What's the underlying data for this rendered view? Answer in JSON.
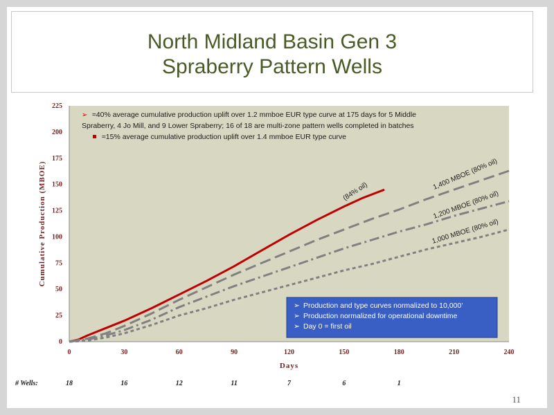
{
  "slide": {
    "title_line1": "North Midland Basin Gen 3",
    "title_line2": "Spraberry Pattern Wells",
    "page_number": "11"
  },
  "chart_data": {
    "type": "line",
    "xlabel": "Days",
    "ylabel": "Cumulative Production (MBOE)",
    "xlim": [
      0,
      240
    ],
    "ylim": [
      0,
      225
    ],
    "xticks": [
      0,
      30,
      60,
      90,
      120,
      150,
      180,
      210,
      240
    ],
    "yticks": [
      0,
      25,
      50,
      75,
      100,
      125,
      150,
      175,
      200,
      225
    ],
    "grid": false,
    "series": [
      {
        "label": "(84% oil)",
        "color": "#c00000",
        "style": "solid",
        "x": [
          0,
          5,
          10,
          20,
          30,
          45,
          60,
          75,
          90,
          105,
          120,
          135,
          150,
          160,
          172
        ],
        "y": [
          0,
          2,
          6,
          13,
          20,
          32,
          45,
          58,
          72,
          87,
          102,
          116,
          129,
          137,
          145
        ]
      },
      {
        "label": "1,400 MBOE (80% oil)",
        "color": "#808080",
        "style": "dash",
        "x": [
          0,
          10,
          20,
          30,
          45,
          60,
          75,
          90,
          105,
          120,
          135,
          150,
          165,
          180,
          195,
          210,
          225,
          240
        ],
        "y": [
          0,
          3,
          8,
          15,
          27,
          40,
          52,
          64,
          75,
          86,
          97,
          107,
          117,
          126,
          136,
          145,
          154,
          163
        ]
      },
      {
        "label": "1,200 MBOE (80% oil)",
        "color": "#808080",
        "style": "dashdot",
        "x": [
          0,
          10,
          20,
          30,
          45,
          60,
          75,
          90,
          105,
          120,
          135,
          150,
          165,
          180,
          195,
          210,
          225,
          240
        ],
        "y": [
          0,
          2,
          6,
          11,
          21,
          33,
          43,
          53,
          62,
          71,
          80,
          89,
          97,
          105,
          112,
          120,
          127,
          134
        ]
      },
      {
        "label": "1,000 MBOE (80% oil)",
        "color": "#808080",
        "style": "dot",
        "x": [
          0,
          10,
          20,
          30,
          45,
          60,
          75,
          90,
          105,
          120,
          135,
          150,
          165,
          180,
          195,
          210,
          225,
          240
        ],
        "y": [
          0,
          1,
          4,
          8,
          16,
          25,
          32,
          40,
          47,
          54,
          61,
          68,
          74,
          81,
          88,
          94,
          100,
          107
        ]
      }
    ],
    "annotations": {
      "bullet1": "≈40% average cumulative production uplift over 1.2 mmboe EUR type curve at 175 days for 5 Middle Spraberry, 4 Jo Mill, and 9 Lower Spraberry; 16 of 18 are multi-zone pattern wells completed in batches",
      "bullet2": "≈15% average cumulative production uplift over 1.4 mmboe EUR type curve",
      "notes": [
        "Production and type curves normalized to 10,000’",
        "Production normalized for operational downtime",
        "Day 0 = first oil"
      ]
    },
    "wells": {
      "label": "# Wells:",
      "days": [
        0,
        30,
        60,
        90,
        120,
        150,
        180
      ],
      "counts": [
        "18",
        "16",
        "12",
        "11",
        "7",
        "6",
        "1"
      ]
    },
    "colors": {
      "plot_bg": "#d8d8c2",
      "axis_text": "#7b1d1d",
      "title": "#4a5a26",
      "note_box": "#3a5fc4"
    }
  }
}
